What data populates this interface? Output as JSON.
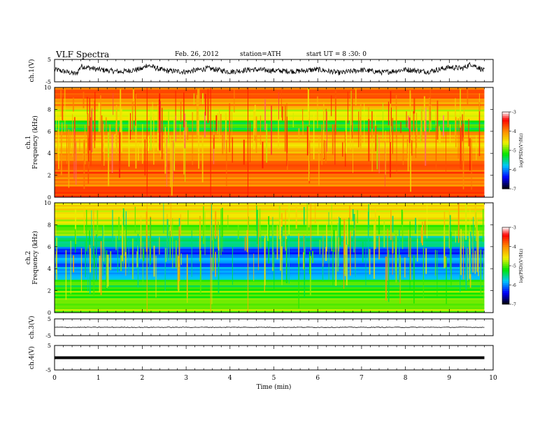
{
  "header": {
    "title": "VLF  Spectra",
    "date": "Feb. 26, 2012",
    "station": "station=ATH",
    "start": "start  UT  =  8 :30: 0"
  },
  "colors": {
    "scale": [
      "#000000",
      "#0000ff",
      "#00c8ff",
      "#00ff00",
      "#ffff00",
      "#ff8000",
      "#ff0000",
      "#ffffff"
    ]
  },
  "chart_data": [
    {
      "id": "ch1-waveform",
      "type": "line",
      "ylabel": "ch.1(V)",
      "xlim": [
        0,
        10
      ],
      "ylim": [
        -5,
        5
      ],
      "yticks": [
        "5",
        "-5"
      ],
      "x": [
        0.0,
        0.5,
        0.6,
        1.0,
        1.5,
        2.0,
        2.1,
        2.5,
        3.0,
        3.5,
        4.0,
        4.5,
        5.0,
        5.5,
        6.0,
        6.5,
        7.0,
        7.5,
        8.0,
        8.5,
        9.0,
        9.3,
        9.5,
        9.8
      ],
      "y": [
        0.5,
        -1.5,
        2.0,
        0.5,
        -0.5,
        0.8,
        2.5,
        0.0,
        -0.5,
        1.0,
        -0.5,
        0.5,
        0.0,
        -0.3,
        0.5,
        -1.0,
        0.3,
        -0.8,
        0.5,
        -0.5,
        1.5,
        1.0,
        3.0,
        0.0
      ]
    },
    {
      "id": "ch1-spectrogram",
      "type": "heatmap",
      "ylabel": "ch.1\nFrequency (kHz)",
      "xlim": [
        0,
        10
      ],
      "ylim": [
        0,
        10
      ],
      "yticks": [
        "0",
        "2",
        "4",
        "6",
        "8",
        "10"
      ],
      "colorbar_label": "log(PSD)(V²/Hz)",
      "colorbar_ticks": [
        "-3",
        "-4",
        "-5",
        "-6",
        "-7"
      ],
      "clim": [
        -7,
        -3
      ],
      "freq_bands_khz": [
        0,
        1,
        2,
        3,
        4,
        5,
        6,
        7,
        8,
        9
      ],
      "band_mean_log_psd": [
        -3.8,
        -3.9,
        -3.8,
        -4.0,
        -4.4,
        -4.2,
        -5.2,
        -4.6,
        -4.1,
        -3.8
      ]
    },
    {
      "id": "ch2-spectrogram",
      "type": "heatmap",
      "ylabel": "ch.2\nFrequency (kHz)",
      "xlim": [
        0,
        10
      ],
      "ylim": [
        0,
        10
      ],
      "yticks": [
        "0",
        "2",
        "4",
        "6",
        "8",
        "10"
      ],
      "colorbar_label": "log(PSD)(V²/Hz)",
      "colorbar_ticks": [
        "-3",
        "-4",
        "-5",
        "-6",
        "-7"
      ],
      "clim": [
        -7,
        -3
      ],
      "freq_bands_khz": [
        0,
        1,
        2,
        3,
        4,
        5,
        6,
        7,
        8,
        9
      ],
      "band_mean_log_psd": [
        -4.8,
        -5.0,
        -5.2,
        -5.8,
        -6.0,
        -6.2,
        -5.6,
        -5.0,
        -4.6,
        -4.5
      ]
    },
    {
      "id": "ch3-waveform",
      "type": "line",
      "ylabel": "ch.3(V)",
      "xlim": [
        0,
        10
      ],
      "ylim": [
        -5,
        5
      ],
      "yticks": [
        "5",
        "-5"
      ],
      "x": [
        0,
        9.8
      ],
      "y": [
        0,
        0
      ]
    },
    {
      "id": "ch4-waveform",
      "type": "line",
      "ylabel": "ch.4(V)",
      "xlim": [
        0,
        10
      ],
      "ylim": [
        -5,
        5
      ],
      "yticks": [
        "5",
        "-5"
      ],
      "xlabel": "Time  (min)",
      "xticks": [
        "0",
        "1",
        "2",
        "3",
        "4",
        "5",
        "6",
        "7",
        "8",
        "9",
        "10"
      ],
      "x": [
        0,
        9.8
      ],
      "y": [
        0,
        0
      ]
    }
  ]
}
